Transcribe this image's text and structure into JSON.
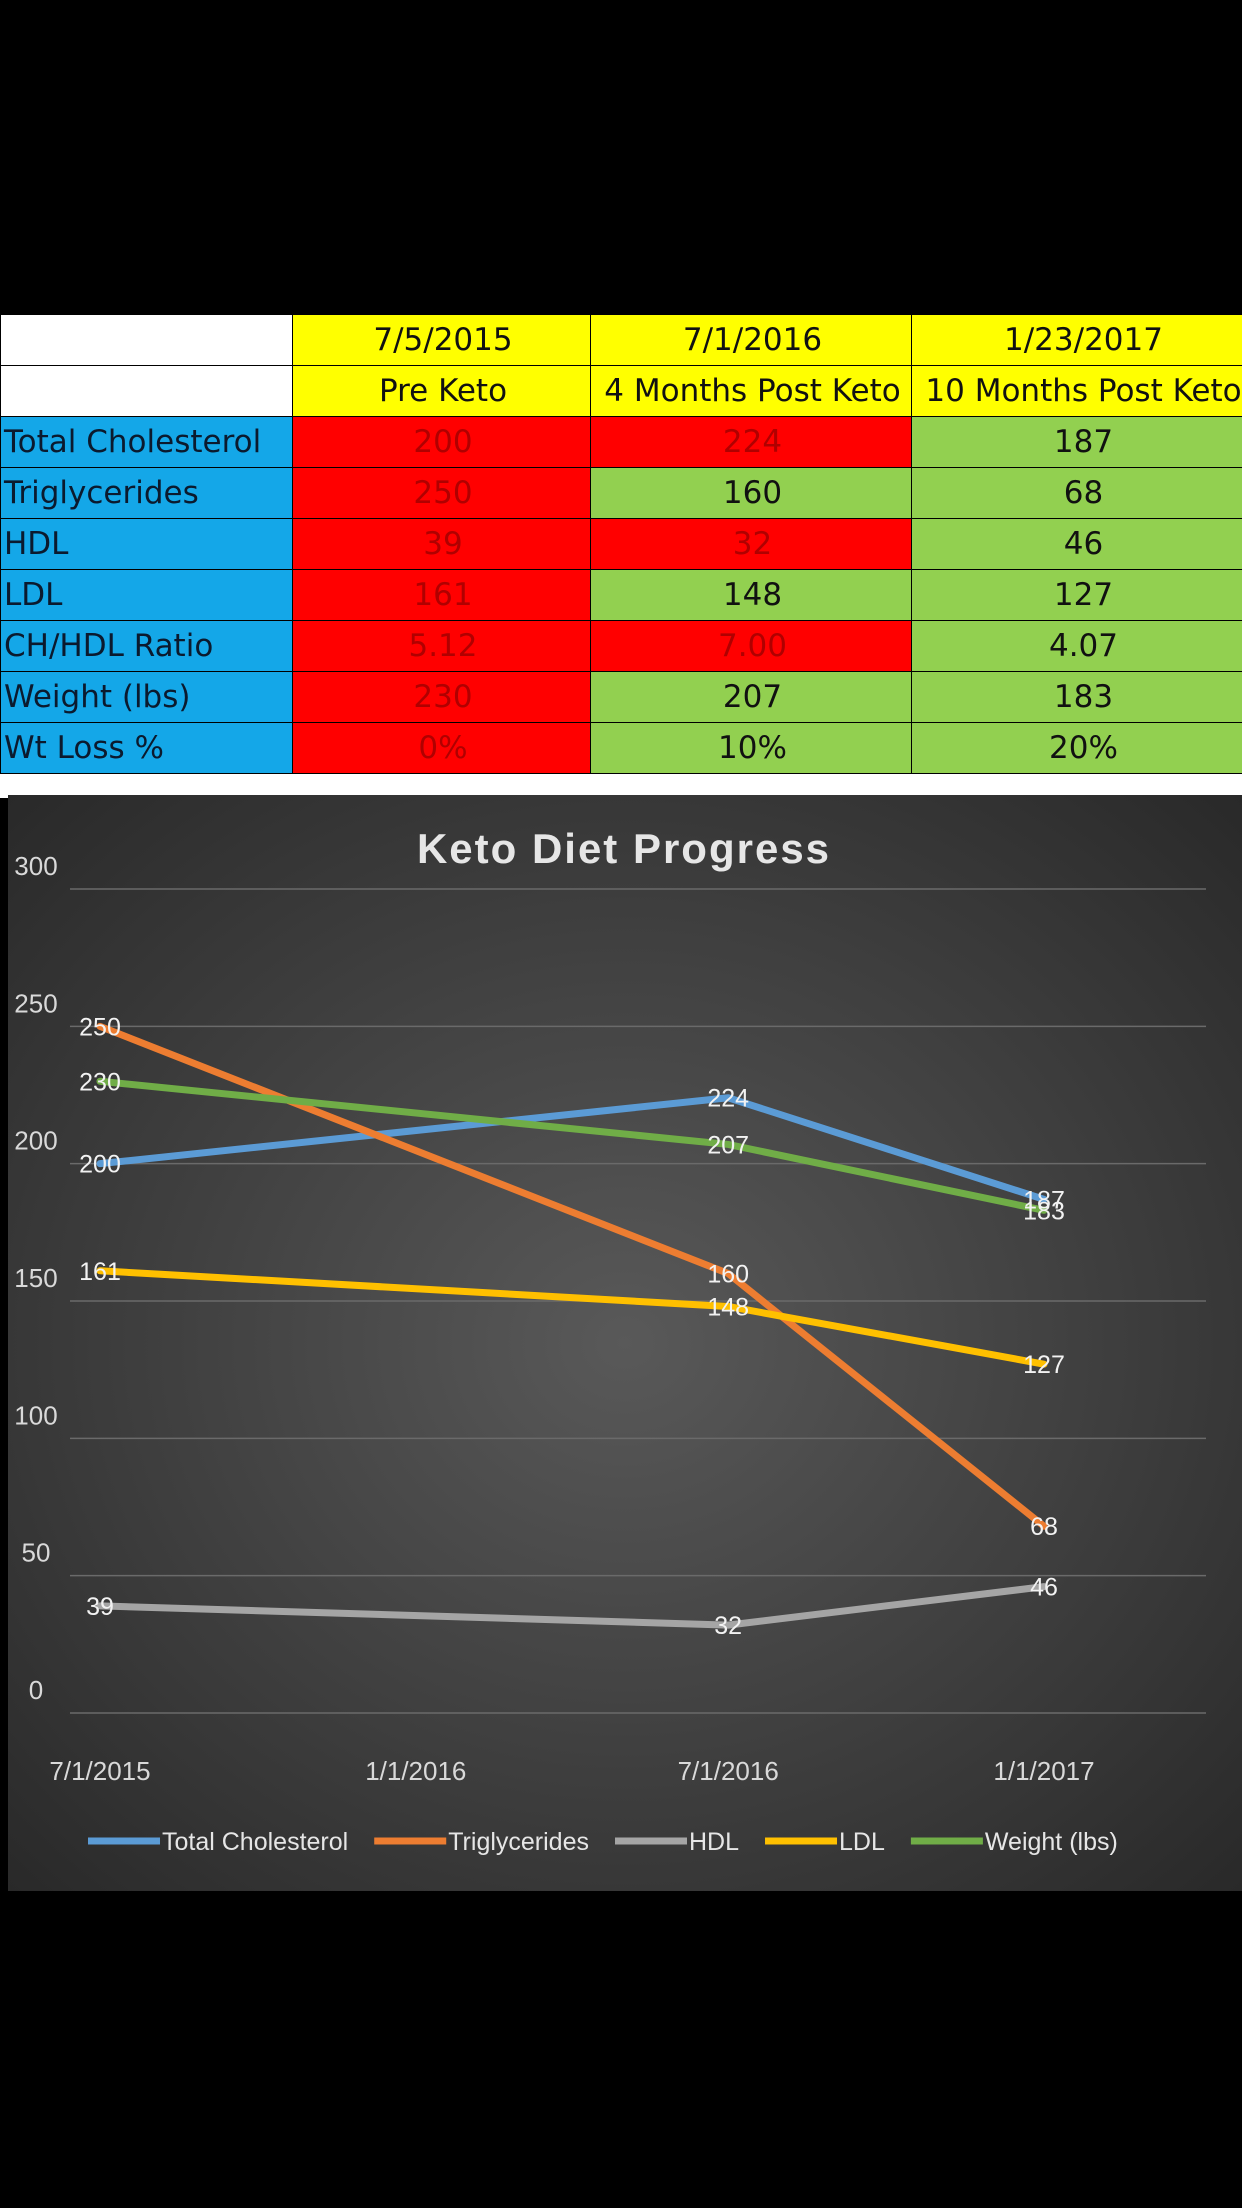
{
  "table": {
    "dates": [
      "7/5/2015",
      "7/1/2016",
      "1/23/2017"
    ],
    "phases": [
      "Pre Keto",
      "4 Months Post Keto",
      "10 Months Post Keto"
    ],
    "rows": [
      {
        "label": "Total Cholesterol",
        "values": [
          "200",
          "224",
          "187"
        ],
        "status": [
          "red",
          "red",
          "green"
        ]
      },
      {
        "label": "Triglycerides",
        "values": [
          "250",
          "160",
          "68"
        ],
        "status": [
          "red",
          "green",
          "green"
        ]
      },
      {
        "label": "HDL",
        "values": [
          "39",
          "32",
          "46"
        ],
        "status": [
          "red",
          "red",
          "green"
        ]
      },
      {
        "label": "LDL",
        "values": [
          "161",
          "148",
          "127"
        ],
        "status": [
          "red",
          "green",
          "green"
        ]
      },
      {
        "label": "CH/HDL Ratio",
        "values": [
          "5.12",
          "7.00",
          "4.07"
        ],
        "status": [
          "red",
          "red",
          "green"
        ]
      },
      {
        "label": "Weight (lbs)",
        "values": [
          "230",
          "207",
          "183"
        ],
        "status": [
          "red",
          "green",
          "green"
        ]
      },
      {
        "label": "Wt Loss %",
        "values": [
          "0%",
          "10%",
          "20%"
        ],
        "status": [
          "red",
          "green",
          "green"
        ]
      }
    ]
  },
  "chart_data": {
    "type": "line",
    "title": "Keto Diet Progress",
    "xlabel": "",
    "ylabel": "",
    "x": [
      "7/1/2015",
      "7/1/2016",
      "1/1/2017"
    ],
    "x_ticks": [
      "7/1/2015",
      "1/1/2016",
      "7/1/2016",
      "1/1/2017"
    ],
    "y_ticks": [
      "0",
      "50",
      "100",
      "150",
      "200",
      "250",
      "300"
    ],
    "ylim": [
      0,
      300
    ],
    "grid": true,
    "legend": "bottom",
    "series": [
      {
        "name": "Total Cholesterol",
        "color": "#5b9bd5",
        "values": [
          200,
          224,
          187
        ],
        "labels": [
          "200",
          "224",
          "187"
        ]
      },
      {
        "name": "Triglycerides",
        "color": "#ed7d31",
        "values": [
          250,
          160,
          68
        ],
        "labels": [
          "250",
          "160",
          "68"
        ]
      },
      {
        "name": "HDL",
        "color": "#a5a5a5",
        "values": [
          39,
          32,
          46
        ],
        "labels": [
          "39",
          "32",
          "46"
        ]
      },
      {
        "name": "LDL",
        "color": "#ffc000",
        "values": [
          161,
          148,
          127
        ],
        "labels": [
          "161",
          "148",
          "127"
        ]
      },
      {
        "name": "Weight (lbs)",
        "color": "#70ad47",
        "values": [
          230,
          207,
          183
        ],
        "labels": [
          "230",
          "207",
          "183"
        ]
      }
    ]
  }
}
